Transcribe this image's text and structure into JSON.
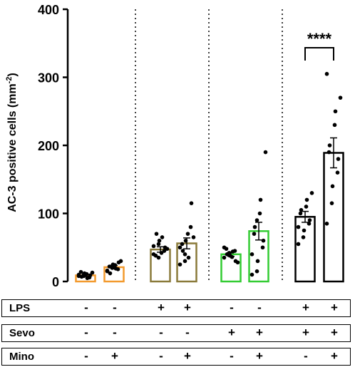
{
  "chart_data": {
    "type": "bar",
    "ylabel": "AC-3 positive cells (mm",
    "ylabel_sup": "-2",
    "ylabel_close": ")",
    "ylim": [
      0,
      400
    ],
    "yticks": [
      "0",
      "100",
      "200",
      "300",
      "400"
    ],
    "series": [
      {
        "color": "#f39a2e",
        "mean": 9,
        "sem": 1.5,
        "points": [
          8,
          10,
          12,
          6,
          9,
          14,
          7,
          11,
          5,
          13,
          10,
          8
        ]
      },
      {
        "color": "#f39a2e",
        "mean": 21,
        "sem": 2.5,
        "points": [
          15,
          20,
          25,
          18,
          28,
          22,
          12,
          24,
          19,
          30,
          16,
          23
        ]
      },
      {
        "color": "#8a7a3a",
        "mean": 47,
        "sem": 4,
        "points": [
          40,
          55,
          60,
          45,
          50,
          38,
          70,
          42,
          65,
          48,
          52,
          35
        ]
      },
      {
        "color": "#8a7a3a",
        "mean": 56,
        "sem": 8,
        "points": [
          25,
          40,
          60,
          80,
          115,
          55,
          45,
          70,
          35,
          65,
          50,
          30
        ]
      },
      {
        "color": "#33cc33",
        "mean": 40,
        "sem": 3,
        "points": [
          35,
          42,
          38,
          45,
          30,
          48,
          40,
          36,
          44,
          28,
          50
        ]
      },
      {
        "color": "#33cc33",
        "mean": 74,
        "sem": 13,
        "points": [
          10,
          15,
          30,
          50,
          60,
          70,
          80,
          100,
          120,
          190,
          40,
          90
        ]
      },
      {
        "color": "#000000",
        "mean": 95,
        "sem": 8,
        "points": [
          55,
          65,
          75,
          85,
          90,
          100,
          105,
          110,
          120,
          130,
          80
        ]
      },
      {
        "color": "#000000",
        "mean": 189,
        "sem": 22,
        "points": [
          85,
          115,
          140,
          160,
          180,
          190,
          200,
          230,
          250,
          270,
          305
        ]
      }
    ],
    "significance": "****",
    "conditions": [
      {
        "label": "LPS",
        "values": [
          "-",
          "-",
          "+",
          "+",
          "-",
          "-",
          "+",
          "+"
        ]
      },
      {
        "label": "Sevo",
        "values": [
          "-",
          "-",
          "-",
          "-",
          "+",
          "+",
          "+",
          "+"
        ]
      },
      {
        "label": "Mino",
        "values": [
          "-",
          "+",
          "-",
          "+",
          "-",
          "+",
          "-",
          "+"
        ]
      }
    ]
  }
}
